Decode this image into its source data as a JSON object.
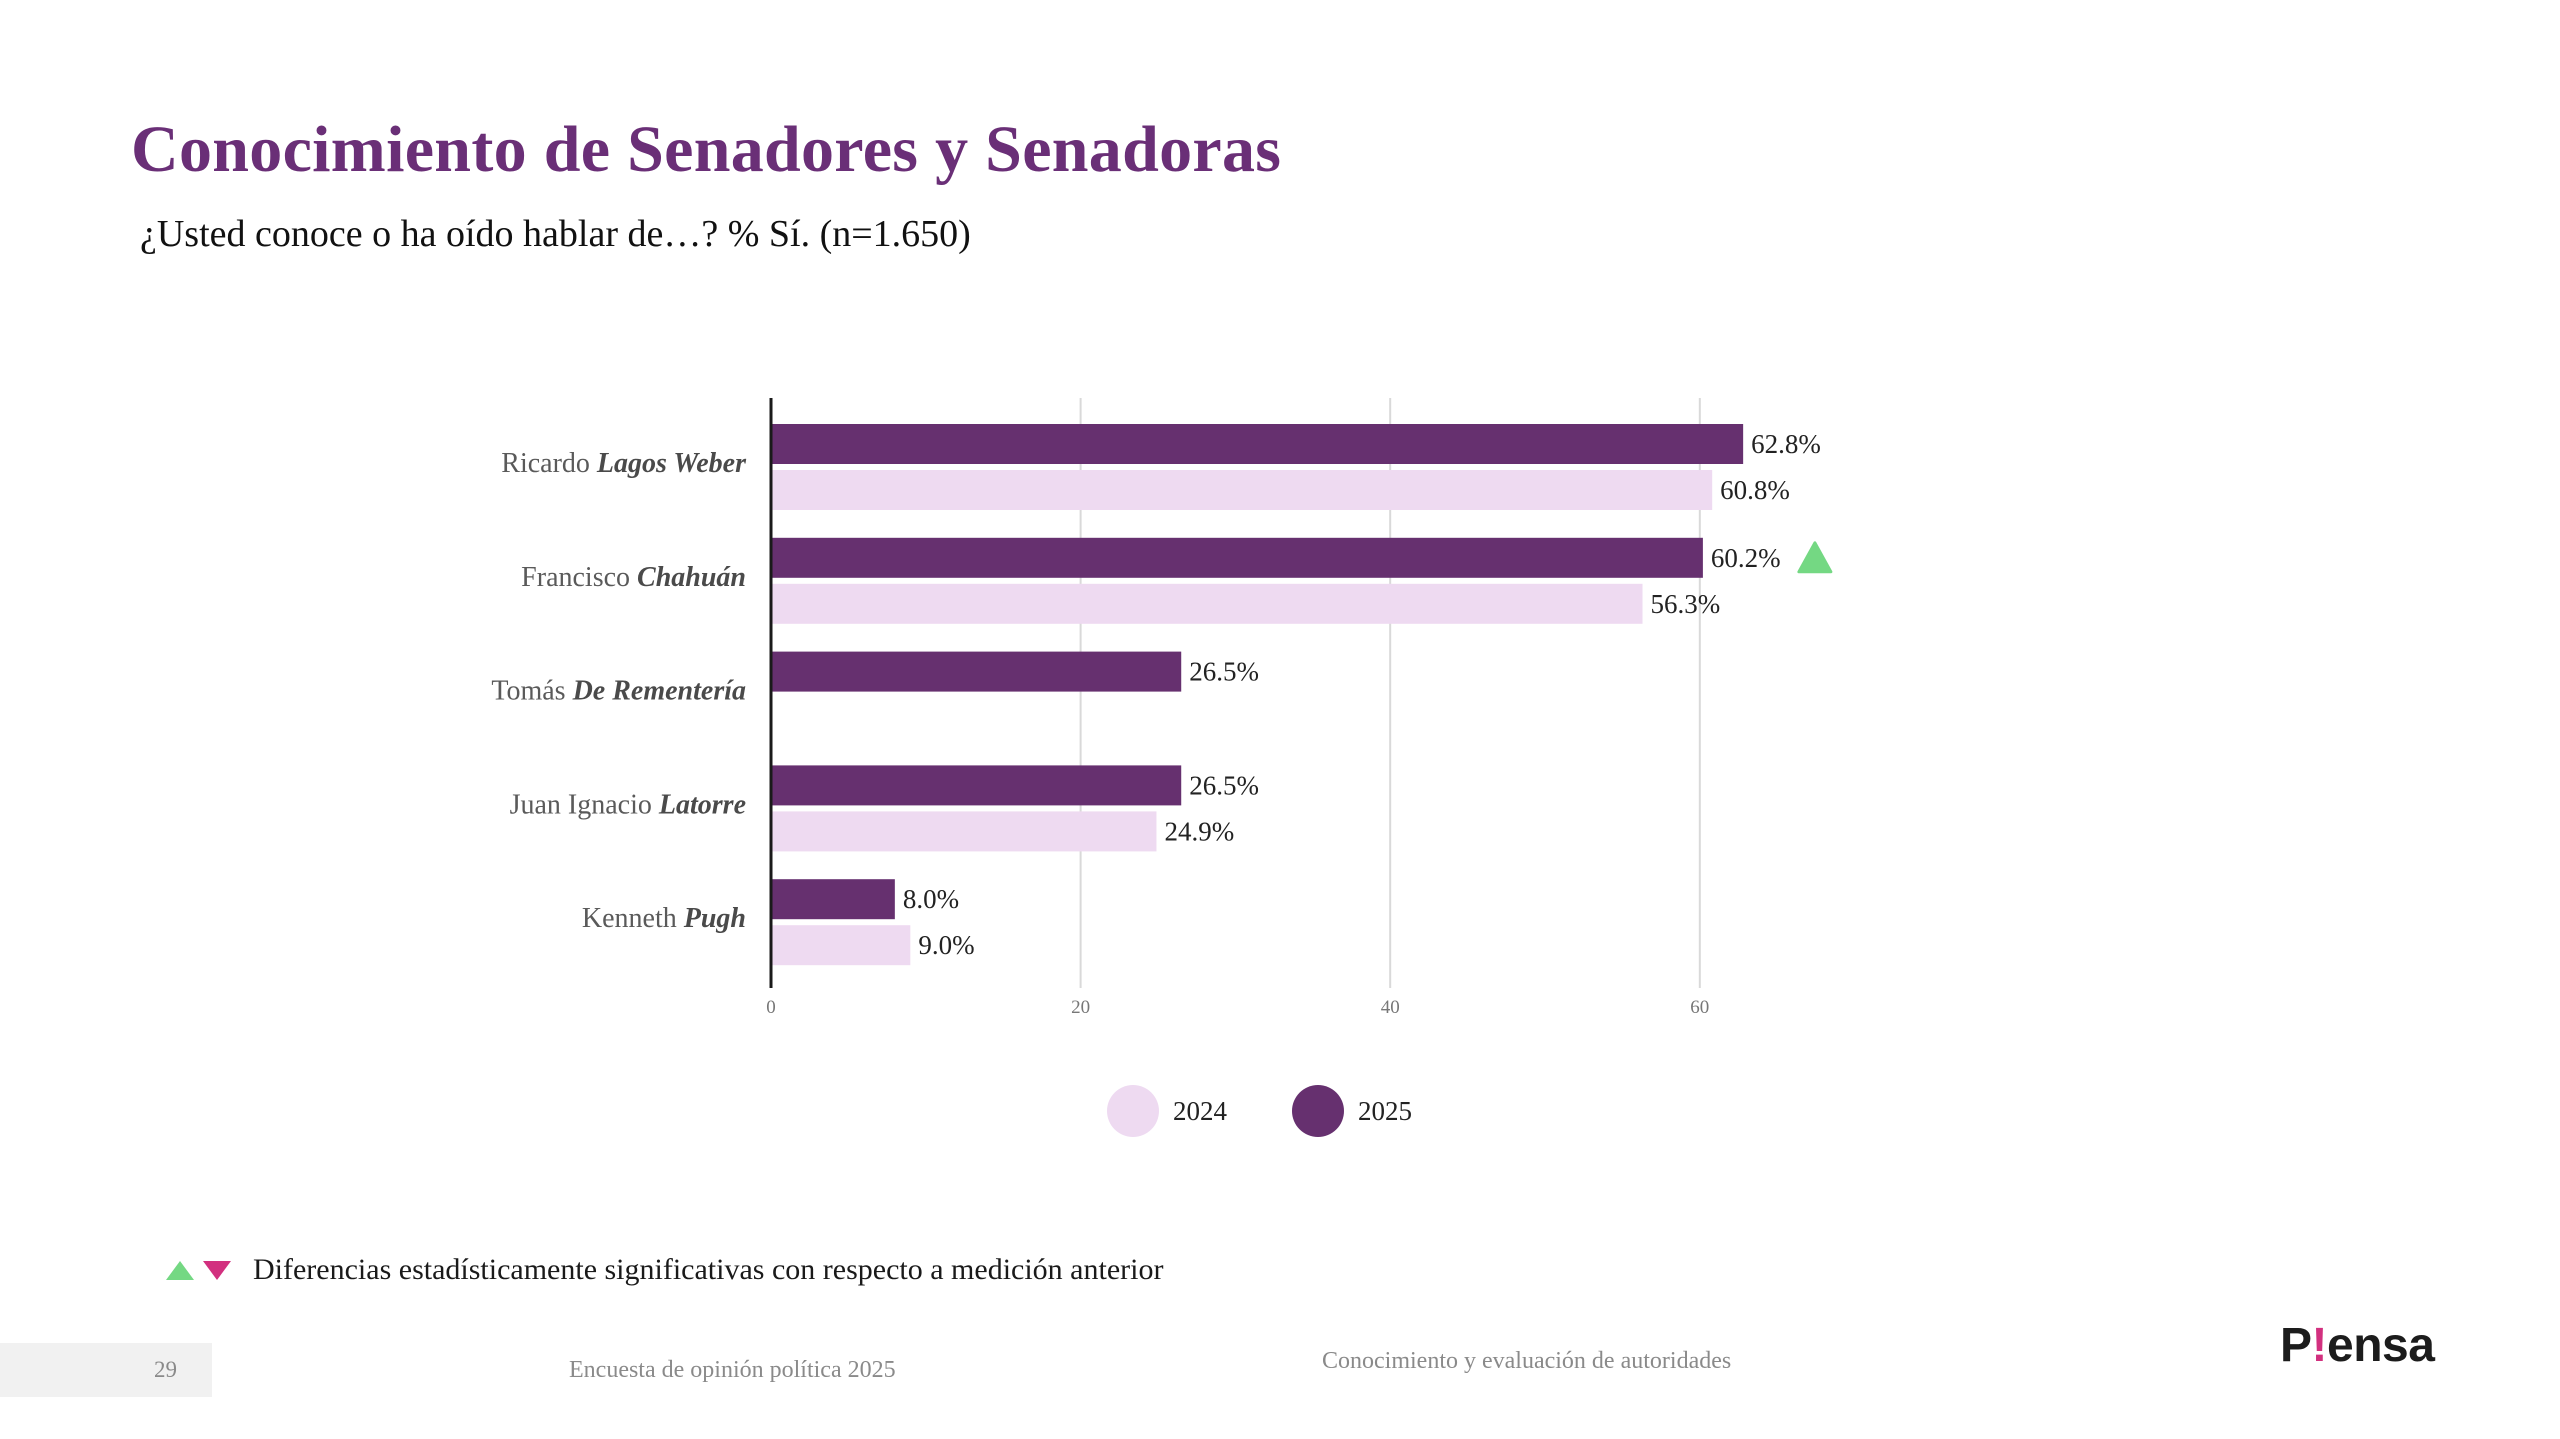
{
  "header": {
    "title": "Conocimiento de Senadores y Senadoras",
    "subtitle": "¿Usted conoce o ha oído hablar de…? % Sí. (n=1.650)"
  },
  "colors": {
    "title": "#6A2F77",
    "series_2025": "#66306F",
    "series_2024": "#EEDAF1",
    "significant_up": "#74D883",
    "significant_down": "#D2307F"
  },
  "chart_data": {
    "type": "bar",
    "orientation": "horizontal",
    "title": "Conocimiento de Senadores y Senadoras",
    "subtitle": "¿Usted conoce o ha oído hablar de…? % Sí. (n=1.650)",
    "xlabel": "",
    "ylabel": "",
    "xlim": [
      0,
      66
    ],
    "xticks": [
      0,
      20,
      40,
      60
    ],
    "grid": true,
    "legend_position": "bottom",
    "categories": [
      {
        "first": "Ricardo",
        "last": "Lagos Weber"
      },
      {
        "first": "Francisco",
        "last": "Chahuán"
      },
      {
        "first": "Tomás",
        "last": "De Rementería"
      },
      {
        "first": "Juan Ignacio",
        "last": "Latorre"
      },
      {
        "first": "Kenneth",
        "last": "Pugh"
      }
    ],
    "series": [
      {
        "name": "2025",
        "color": "#66306F",
        "values": [
          62.8,
          60.2,
          26.5,
          26.5,
          8.0
        ],
        "labels": [
          "62.8%",
          "60.2%",
          "26.5%",
          "26.5%",
          "8.0%"
        ]
      },
      {
        "name": "2024",
        "color": "#EEDAF1",
        "values": [
          60.8,
          56.3,
          null,
          24.9,
          9.0
        ],
        "labels": [
          "60.8%",
          "56.3%",
          null,
          "24.9%",
          "9.0%"
        ]
      }
    ],
    "significance": [
      null,
      "up",
      null,
      null,
      null
    ]
  },
  "legend": {
    "items": [
      {
        "label": "2024",
        "color": "#EEDAF1"
      },
      {
        "label": "2025",
        "color": "#66306F"
      }
    ]
  },
  "footnote": {
    "text": "Diferencias estadísticamente significativas con respecto a medición anterior"
  },
  "footer": {
    "page_number": "29",
    "survey_name": "Encuesta de opinión política 2025",
    "section": "Conocimiento y evaluación de autoridades",
    "logo_prefix": "P",
    "logo_bang": "!",
    "logo_suffix": "ensa"
  }
}
